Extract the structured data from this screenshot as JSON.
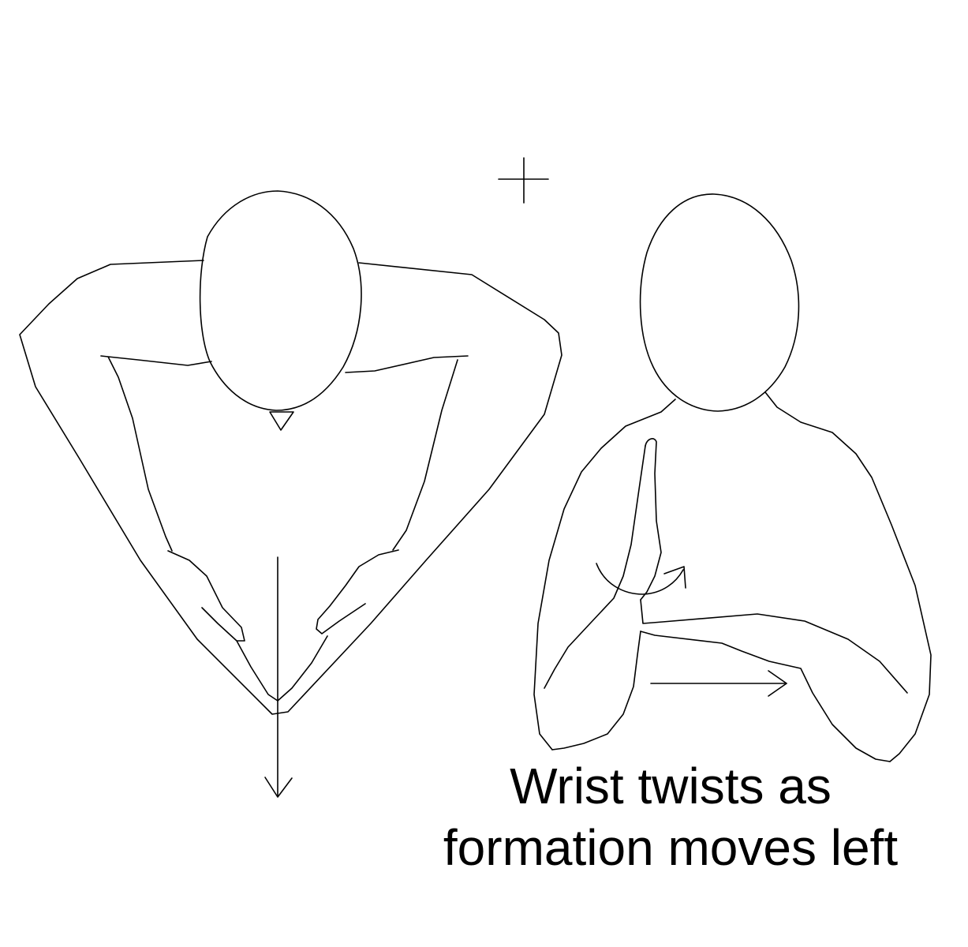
{
  "caption": {
    "line1": "Wrist twists as",
    "line2": "formation moves left"
  },
  "colors": {
    "background": "#ffffff",
    "ink": "#000000"
  }
}
